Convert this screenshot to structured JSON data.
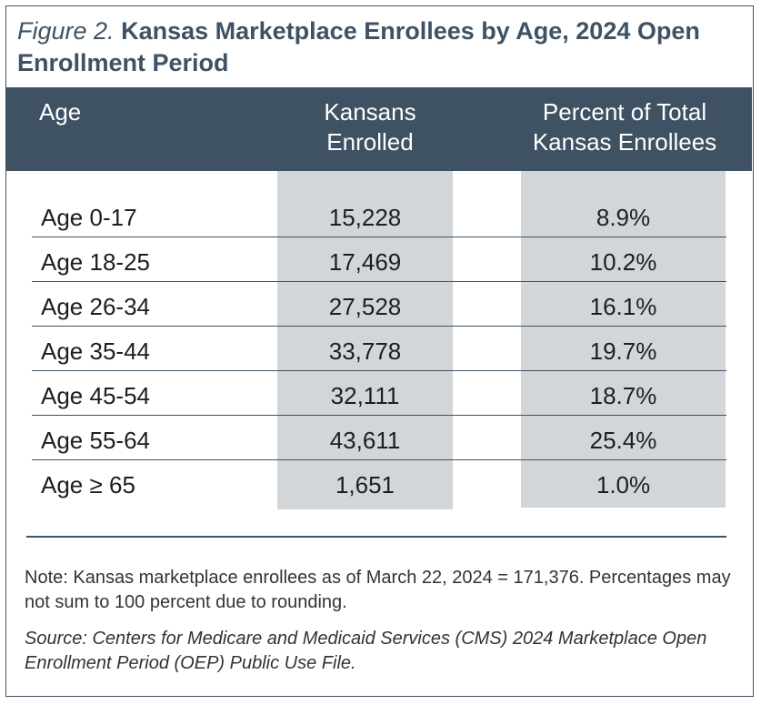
{
  "figure": {
    "label": "Figure 2.",
    "title": "Kansas Marketplace Enrollees by Age, 2024 Open Enrollment Period"
  },
  "table": {
    "headers": {
      "age": "Age",
      "count": "Kansans Enrolled",
      "percent": "Percent of Total Kansas Enrollees"
    },
    "rows": [
      {
        "age": "Age 0-17",
        "count": "15,228",
        "percent": "8.9%"
      },
      {
        "age": "Age 18-25",
        "count": "17,469",
        "percent": "10.2%"
      },
      {
        "age": "Age 26-34",
        "count": "27,528",
        "percent": "16.1%"
      },
      {
        "age": "Age 35-44",
        "count": "33,778",
        "percent": "19.7%"
      },
      {
        "age": "Age 45-54",
        "count": "32,111",
        "percent": "18.7%"
      },
      {
        "age": "Age 55-64",
        "count": "43,611",
        "percent": "25.4%"
      },
      {
        "age": "Age ≥ 65",
        "count": "1,651",
        "percent": "1.0%"
      }
    ]
  },
  "footer": {
    "note": "Note: Kansas marketplace enrollees as of March 22, 2024 = 171,376. Percentages may not sum to 100 percent due to rounding.",
    "source": "Source: Centers for Medicare and Medicaid Services (CMS) 2024 Marketplace Open Enrollment Period (OEP) Public Use File."
  },
  "colors": {
    "header_bg": "#3f5264",
    "column_shade": "#d3d6d9",
    "border": "#3f5264"
  }
}
